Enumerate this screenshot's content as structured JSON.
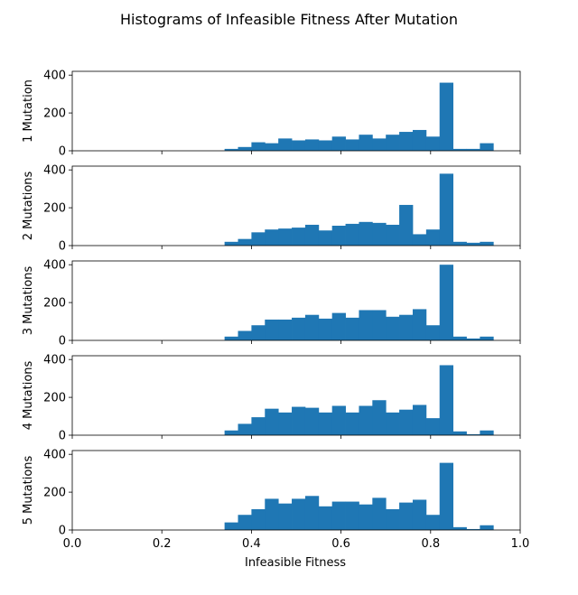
{
  "title": "Histograms of Infeasible Fitness After Mutation",
  "xlabel": "Infeasible Fitness",
  "bar_color": "#1f77b4",
  "chart_data": {
    "type": "bar",
    "title": "Histograms of Infeasible Fitness After Mutation",
    "xlabel": "Infeasible Fitness",
    "xlim": [
      0.0,
      1.0
    ],
    "xticks": [
      "0.0",
      "0.2",
      "0.4",
      "0.6",
      "0.8",
      "1.0"
    ],
    "ylim": [
      0,
      420
    ],
    "yticks": [
      "0",
      "200",
      "400"
    ],
    "grid": false,
    "panels": [
      {
        "ylabel": "1 Mutation",
        "bins": [
          {
            "x0": 0.34,
            "x1": 0.37,
            "value": 10
          },
          {
            "x0": 0.37,
            "x1": 0.4,
            "value": 20
          },
          {
            "x0": 0.4,
            "x1": 0.43,
            "value": 45
          },
          {
            "x0": 0.43,
            "x1": 0.46,
            "value": 40
          },
          {
            "x0": 0.46,
            "x1": 0.49,
            "value": 65
          },
          {
            "x0": 0.49,
            "x1": 0.52,
            "value": 55
          },
          {
            "x0": 0.52,
            "x1": 0.55,
            "value": 60
          },
          {
            "x0": 0.55,
            "x1": 0.58,
            "value": 55
          },
          {
            "x0": 0.58,
            "x1": 0.61,
            "value": 75
          },
          {
            "x0": 0.61,
            "x1": 0.64,
            "value": 60
          },
          {
            "x0": 0.64,
            "x1": 0.67,
            "value": 85
          },
          {
            "x0": 0.67,
            "x1": 0.7,
            "value": 65
          },
          {
            "x0": 0.7,
            "x1": 0.73,
            "value": 85
          },
          {
            "x0": 0.73,
            "x1": 0.76,
            "value": 100
          },
          {
            "x0": 0.76,
            "x1": 0.79,
            "value": 110
          },
          {
            "x0": 0.79,
            "x1": 0.82,
            "value": 75
          },
          {
            "x0": 0.82,
            "x1": 0.85,
            "value": 360
          },
          {
            "x0": 0.85,
            "x1": 0.88,
            "value": 10
          },
          {
            "x0": 0.88,
            "x1": 0.91,
            "value": 10
          },
          {
            "x0": 0.91,
            "x1": 0.94,
            "value": 40
          }
        ]
      },
      {
        "ylabel": "2 Mutations",
        "bins": [
          {
            "x0": 0.34,
            "x1": 0.37,
            "value": 20
          },
          {
            "x0": 0.37,
            "x1": 0.4,
            "value": 35
          },
          {
            "x0": 0.4,
            "x1": 0.43,
            "value": 70
          },
          {
            "x0": 0.43,
            "x1": 0.46,
            "value": 85
          },
          {
            "x0": 0.46,
            "x1": 0.49,
            "value": 90
          },
          {
            "x0": 0.49,
            "x1": 0.52,
            "value": 95
          },
          {
            "x0": 0.52,
            "x1": 0.55,
            "value": 110
          },
          {
            "x0": 0.55,
            "x1": 0.58,
            "value": 80
          },
          {
            "x0": 0.58,
            "x1": 0.61,
            "value": 105
          },
          {
            "x0": 0.61,
            "x1": 0.64,
            "value": 115
          },
          {
            "x0": 0.64,
            "x1": 0.67,
            "value": 125
          },
          {
            "x0": 0.67,
            "x1": 0.7,
            "value": 120
          },
          {
            "x0": 0.7,
            "x1": 0.73,
            "value": 110
          },
          {
            "x0": 0.73,
            "x1": 0.76,
            "value": 215
          },
          {
            "x0": 0.76,
            "x1": 0.79,
            "value": 60
          },
          {
            "x0": 0.79,
            "x1": 0.82,
            "value": 85
          },
          {
            "x0": 0.82,
            "x1": 0.85,
            "value": 380
          },
          {
            "x0": 0.85,
            "x1": 0.88,
            "value": 20
          },
          {
            "x0": 0.88,
            "x1": 0.91,
            "value": 15
          },
          {
            "x0": 0.91,
            "x1": 0.94,
            "value": 20
          }
        ]
      },
      {
        "ylabel": "3 Mutations",
        "bins": [
          {
            "x0": 0.34,
            "x1": 0.37,
            "value": 20
          },
          {
            "x0": 0.37,
            "x1": 0.4,
            "value": 50
          },
          {
            "x0": 0.4,
            "x1": 0.43,
            "value": 80
          },
          {
            "x0": 0.43,
            "x1": 0.46,
            "value": 110
          },
          {
            "x0": 0.46,
            "x1": 0.49,
            "value": 110
          },
          {
            "x0": 0.49,
            "x1": 0.52,
            "value": 120
          },
          {
            "x0": 0.52,
            "x1": 0.55,
            "value": 135
          },
          {
            "x0": 0.55,
            "x1": 0.58,
            "value": 115
          },
          {
            "x0": 0.58,
            "x1": 0.61,
            "value": 145
          },
          {
            "x0": 0.61,
            "x1": 0.64,
            "value": 120
          },
          {
            "x0": 0.64,
            "x1": 0.67,
            "value": 160
          },
          {
            "x0": 0.67,
            "x1": 0.7,
            "value": 160
          },
          {
            "x0": 0.7,
            "x1": 0.73,
            "value": 125
          },
          {
            "x0": 0.73,
            "x1": 0.76,
            "value": 135
          },
          {
            "x0": 0.76,
            "x1": 0.79,
            "value": 165
          },
          {
            "x0": 0.79,
            "x1": 0.82,
            "value": 80
          },
          {
            "x0": 0.82,
            "x1": 0.85,
            "value": 400
          },
          {
            "x0": 0.85,
            "x1": 0.88,
            "value": 20
          },
          {
            "x0": 0.88,
            "x1": 0.91,
            "value": 10
          },
          {
            "x0": 0.91,
            "x1": 0.94,
            "value": 20
          }
        ]
      },
      {
        "ylabel": "4 Mutations",
        "bins": [
          {
            "x0": 0.34,
            "x1": 0.37,
            "value": 25
          },
          {
            "x0": 0.37,
            "x1": 0.4,
            "value": 60
          },
          {
            "x0": 0.4,
            "x1": 0.43,
            "value": 95
          },
          {
            "x0": 0.43,
            "x1": 0.46,
            "value": 140
          },
          {
            "x0": 0.46,
            "x1": 0.49,
            "value": 120
          },
          {
            "x0": 0.49,
            "x1": 0.52,
            "value": 150
          },
          {
            "x0": 0.52,
            "x1": 0.55,
            "value": 145
          },
          {
            "x0": 0.55,
            "x1": 0.58,
            "value": 120
          },
          {
            "x0": 0.58,
            "x1": 0.61,
            "value": 155
          },
          {
            "x0": 0.61,
            "x1": 0.64,
            "value": 120
          },
          {
            "x0": 0.64,
            "x1": 0.67,
            "value": 155
          },
          {
            "x0": 0.67,
            "x1": 0.7,
            "value": 185
          },
          {
            "x0": 0.7,
            "x1": 0.73,
            "value": 120
          },
          {
            "x0": 0.73,
            "x1": 0.76,
            "value": 135
          },
          {
            "x0": 0.76,
            "x1": 0.79,
            "value": 160
          },
          {
            "x0": 0.79,
            "x1": 0.82,
            "value": 90
          },
          {
            "x0": 0.82,
            "x1": 0.85,
            "value": 370
          },
          {
            "x0": 0.85,
            "x1": 0.88,
            "value": 20
          },
          {
            "x0": 0.88,
            "x1": 0.91,
            "value": 5
          },
          {
            "x0": 0.91,
            "x1": 0.94,
            "value": 25
          }
        ]
      },
      {
        "ylabel": "5 Mutations",
        "bins": [
          {
            "x0": 0.34,
            "x1": 0.37,
            "value": 40
          },
          {
            "x0": 0.37,
            "x1": 0.4,
            "value": 80
          },
          {
            "x0": 0.4,
            "x1": 0.43,
            "value": 110
          },
          {
            "x0": 0.43,
            "x1": 0.46,
            "value": 165
          },
          {
            "x0": 0.46,
            "x1": 0.49,
            "value": 140
          },
          {
            "x0": 0.49,
            "x1": 0.52,
            "value": 165
          },
          {
            "x0": 0.52,
            "x1": 0.55,
            "value": 180
          },
          {
            "x0": 0.55,
            "x1": 0.58,
            "value": 125
          },
          {
            "x0": 0.58,
            "x1": 0.61,
            "value": 150
          },
          {
            "x0": 0.61,
            "x1": 0.64,
            "value": 150
          },
          {
            "x0": 0.64,
            "x1": 0.67,
            "value": 135
          },
          {
            "x0": 0.67,
            "x1": 0.7,
            "value": 170
          },
          {
            "x0": 0.7,
            "x1": 0.73,
            "value": 110
          },
          {
            "x0": 0.73,
            "x1": 0.76,
            "value": 145
          },
          {
            "x0": 0.76,
            "x1": 0.79,
            "value": 160
          },
          {
            "x0": 0.79,
            "x1": 0.82,
            "value": 80
          },
          {
            "x0": 0.82,
            "x1": 0.85,
            "value": 355
          },
          {
            "x0": 0.85,
            "x1": 0.88,
            "value": 15
          },
          {
            "x0": 0.88,
            "x1": 0.91,
            "value": 5
          },
          {
            "x0": 0.91,
            "x1": 0.94,
            "value": 25
          }
        ]
      }
    ]
  }
}
